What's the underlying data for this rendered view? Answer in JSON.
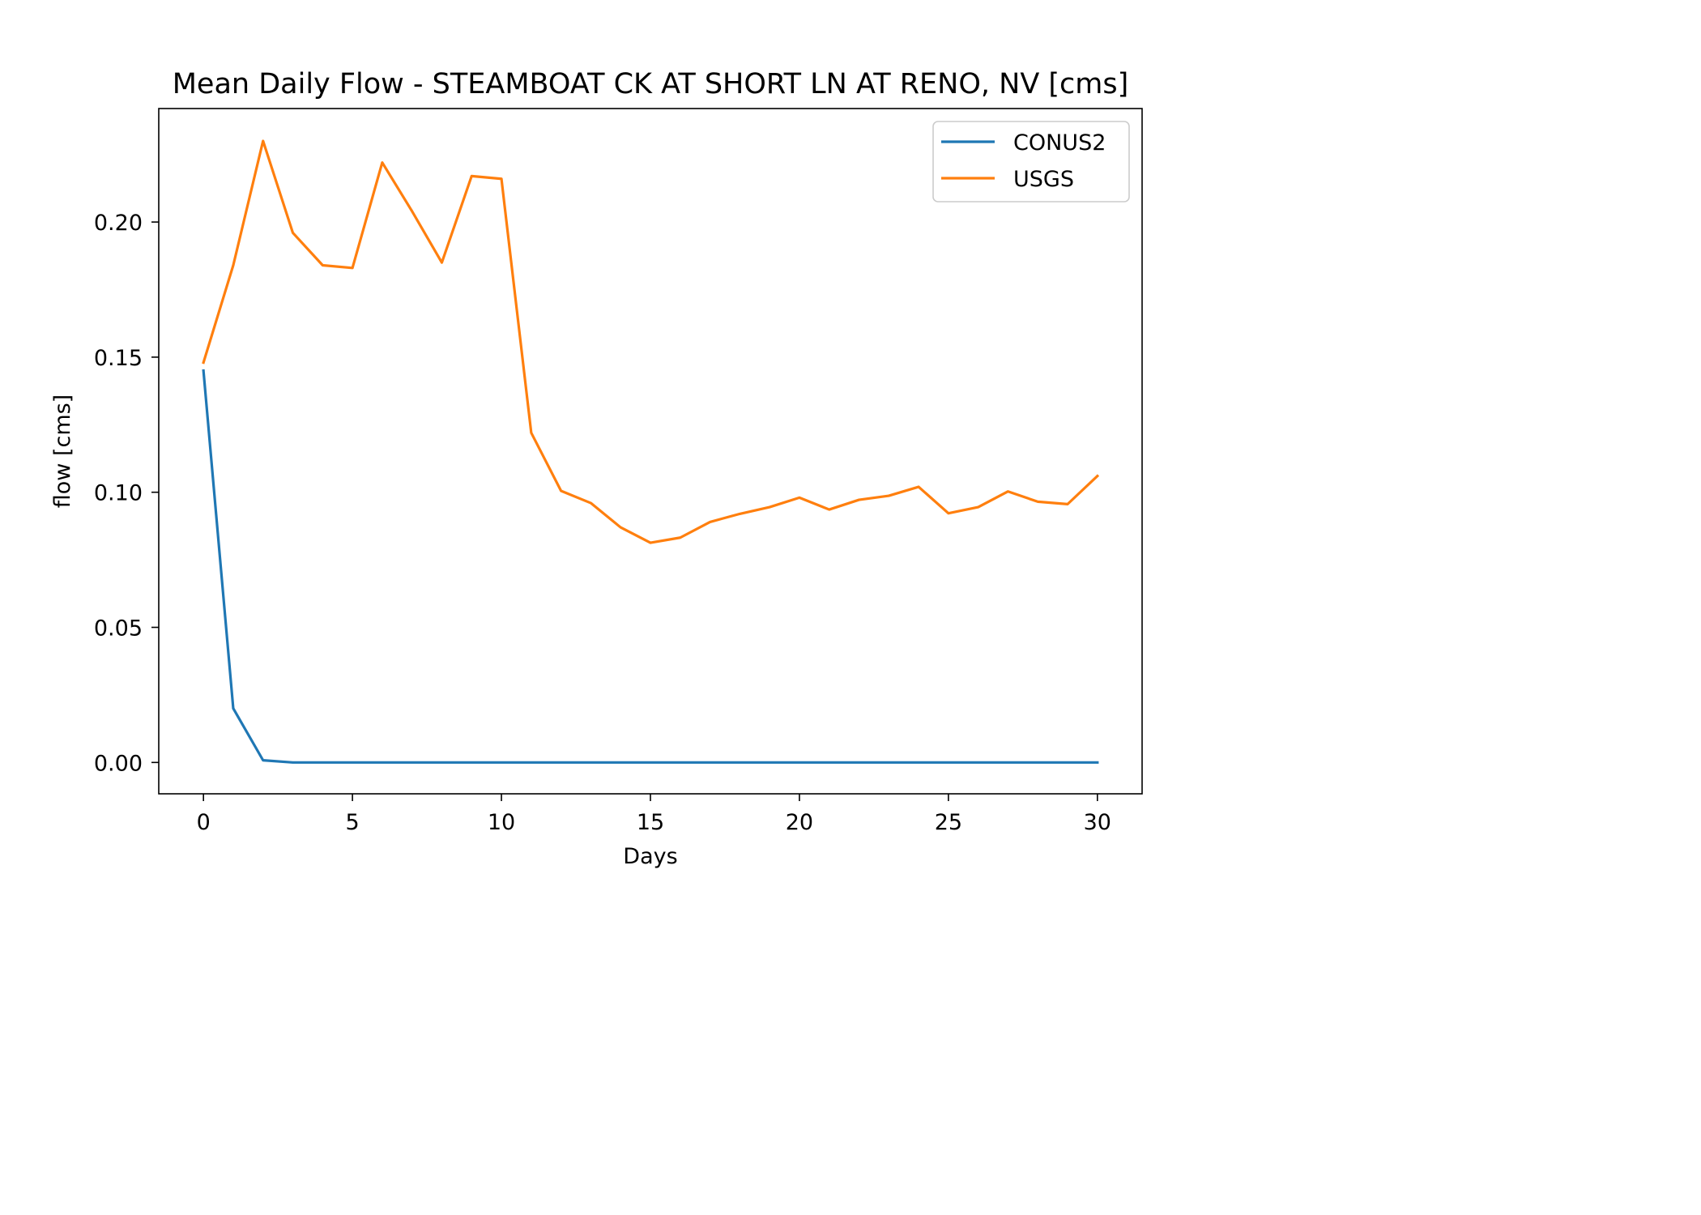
{
  "chart_data": {
    "type": "line",
    "title": "Mean Daily Flow - STEAMBOAT CK AT SHORT LN AT RENO, NV [cms]",
    "xlabel": "Days",
    "ylabel": "flow [cms]",
    "xlim": [
      -1.5,
      31.5
    ],
    "ylim": [
      -0.0116,
      0.242
    ],
    "xticks": [
      0,
      5,
      10,
      15,
      20,
      25,
      30
    ],
    "xtick_labels": [
      "0",
      "5",
      "10",
      "15",
      "20",
      "25",
      "30"
    ],
    "yticks": [
      0.0,
      0.05,
      0.1,
      0.15,
      0.2
    ],
    "ytick_labels": [
      "0.00",
      "0.05",
      "0.10",
      "0.15",
      "0.20"
    ],
    "grid": false,
    "legend_position": "upper right",
    "x": [
      0,
      1,
      2,
      3,
      4,
      5,
      6,
      7,
      8,
      9,
      10,
      11,
      12,
      13,
      14,
      15,
      16,
      17,
      18,
      19,
      20,
      21,
      22,
      23,
      24,
      25,
      26,
      27,
      28,
      29,
      30
    ],
    "series": [
      {
        "name": "CONUS2",
        "color": "#1f77b4",
        "values": [
          0.145,
          0.02,
          0.0008,
          0,
          0,
          0,
          0,
          0,
          0,
          0,
          0,
          0,
          0,
          0,
          0,
          0,
          0,
          0,
          0,
          0,
          0,
          0,
          0,
          0,
          0,
          0,
          0,
          0,
          0,
          0,
          0
        ]
      },
      {
        "name": "USGS",
        "color": "#ff7f0e",
        "values": [
          0.148,
          0.184,
          0.23,
          0.196,
          0.184,
          0.183,
          0.222,
          0.204,
          0.185,
          0.217,
          0.216,
          0.122,
          0.1005,
          0.096,
          0.087,
          0.0813,
          0.0832,
          0.089,
          0.092,
          0.0945,
          0.098,
          0.0936,
          0.0972,
          0.0987,
          0.102,
          0.0922,
          0.0945,
          0.1003,
          0.0965,
          0.0956,
          0.106
        ]
      }
    ]
  }
}
